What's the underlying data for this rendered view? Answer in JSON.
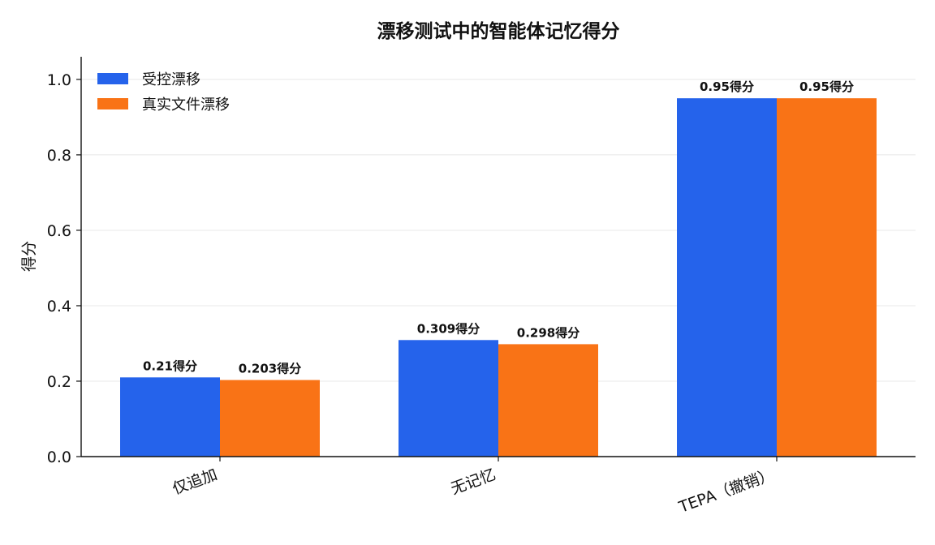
{
  "chart_data": {
    "type": "bar",
    "title": "漂移测试中的智能体记忆得分",
    "xlabel": "",
    "ylabel": "得分",
    "ylim": [
      0,
      1.06
    ],
    "yticks": [
      0.0,
      0.2,
      0.4,
      0.6,
      0.8,
      1.0
    ],
    "ytick_labels": [
      "0.0",
      "0.2",
      "0.4",
      "0.6",
      "0.8",
      "1.0"
    ],
    "categories": [
      "仅追加",
      "无记忆",
      "TEPA（撤销）"
    ],
    "series": [
      {
        "name": "受控漂移",
        "color": "#2563eb",
        "values": [
          0.21,
          0.309,
          0.95
        ],
        "labels": [
          "0.21得分",
          "0.309得分",
          "0.95得分"
        ]
      },
      {
        "name": "真实文件漂移",
        "color": "#f97316",
        "values": [
          0.203,
          0.298,
          0.95
        ],
        "labels": [
          "0.203得分",
          "0.298得分",
          "0.95得分"
        ]
      }
    ],
    "grid": "horizontal",
    "legend_position": "top-left",
    "x_tick_rotation": "slanted"
  }
}
